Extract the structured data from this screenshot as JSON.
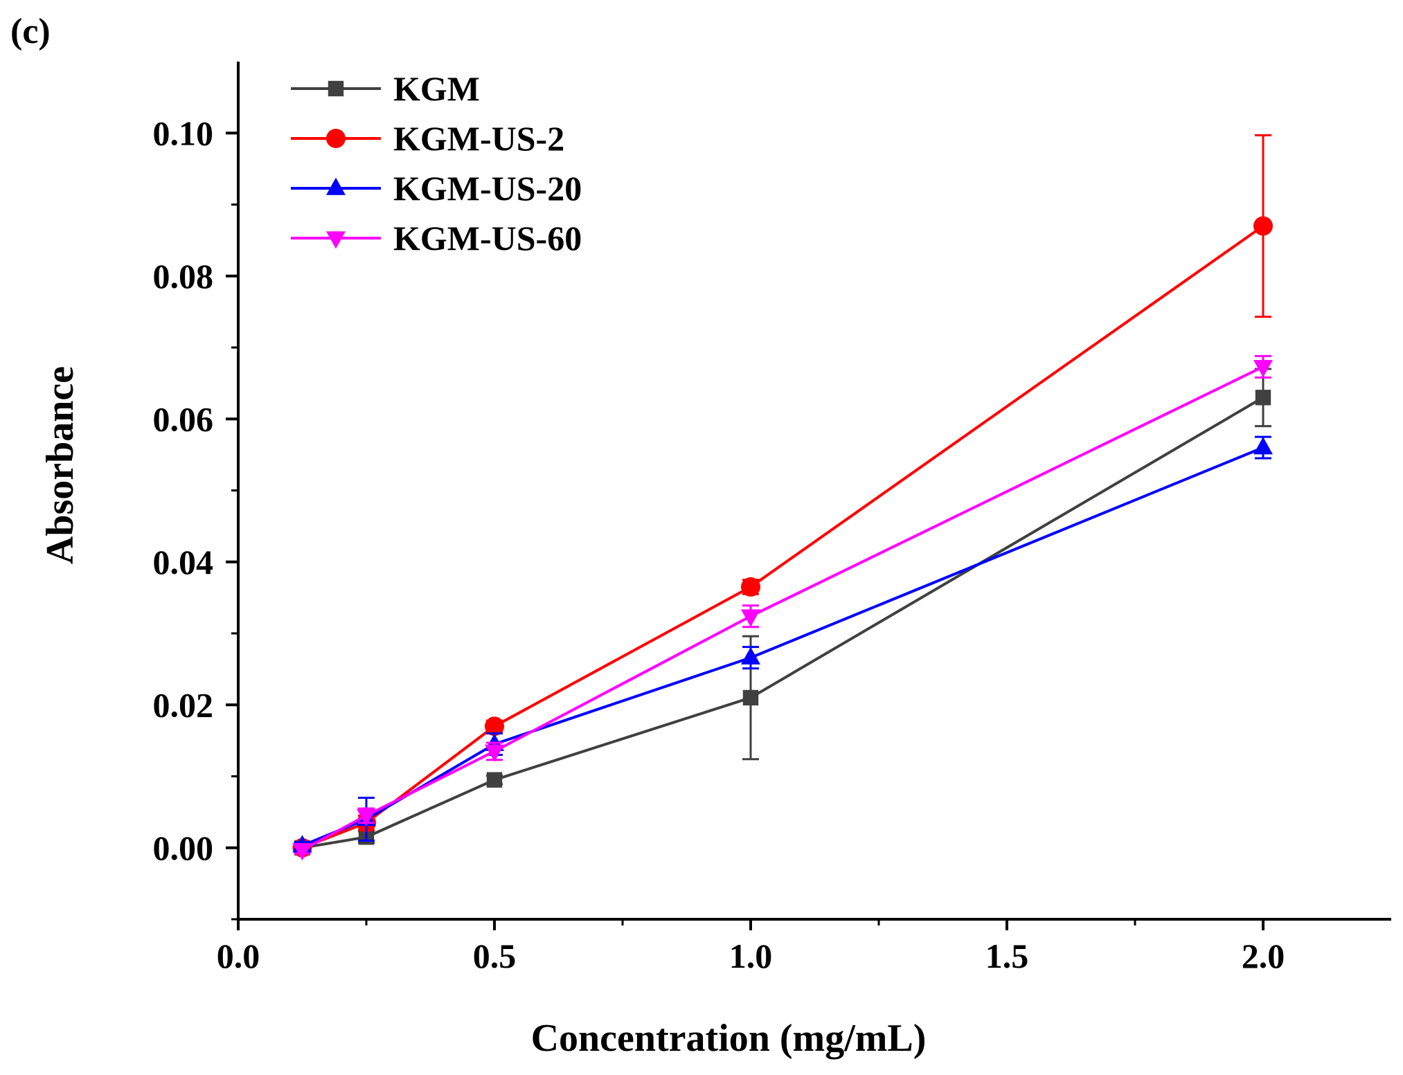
{
  "chart_data": {
    "type": "line",
    "panel_label": "(c)",
    "xlabel": "Concentration (mg/mL)",
    "ylabel": "Absorbance",
    "xlim": [
      0,
      2.25
    ],
    "ylim": [
      -0.01,
      0.11
    ],
    "xticks": [
      0.0,
      0.5,
      1.0,
      1.5,
      2.0
    ],
    "xtick_labels": [
      "0.0",
      "0.5",
      "1.0",
      "1.5",
      "2.0"
    ],
    "yticks": [
      0.0,
      0.02,
      0.04,
      0.06,
      0.08,
      0.1
    ],
    "ytick_labels": [
      "0.00",
      "0.02",
      "0.04",
      "0.06",
      "0.08",
      "0.10"
    ],
    "grid": false,
    "legend_position": "top-left",
    "x": [
      0.125,
      0.25,
      0.5,
      1.0,
      2.0
    ],
    "series": [
      {
        "name": "KGM",
        "color": "#404040",
        "marker": "square",
        "values": [
          0.0,
          0.0015,
          0.0095,
          0.021,
          0.063
        ],
        "errors": [
          0.0005,
          0.0008,
          0.0006,
          0.0086,
          0.004
        ]
      },
      {
        "name": "KGM-US-2",
        "color": "#ff0000",
        "marker": "circle",
        "values": [
          0.0,
          0.0035,
          0.017,
          0.0365,
          0.087
        ],
        "errors": [
          0.0005,
          0.001,
          0.0008,
          0.001,
          0.0127
        ]
      },
      {
        "name": "KGM-US-20",
        "color": "#0000ff",
        "marker": "triangle-up",
        "values": [
          0.0003,
          0.004,
          0.0145,
          0.0266,
          0.056
        ],
        "errors": [
          0.0005,
          0.003,
          0.0015,
          0.0015,
          0.0015
        ]
      },
      {
        "name": "KGM-US-60",
        "color": "#ff00ff",
        "marker": "triangle-down",
        "values": [
          -0.0003,
          0.0045,
          0.0135,
          0.0324,
          0.0673
        ],
        "errors": [
          0.0005,
          0.001,
          0.0012,
          0.0015,
          0.0015
        ]
      }
    ]
  }
}
